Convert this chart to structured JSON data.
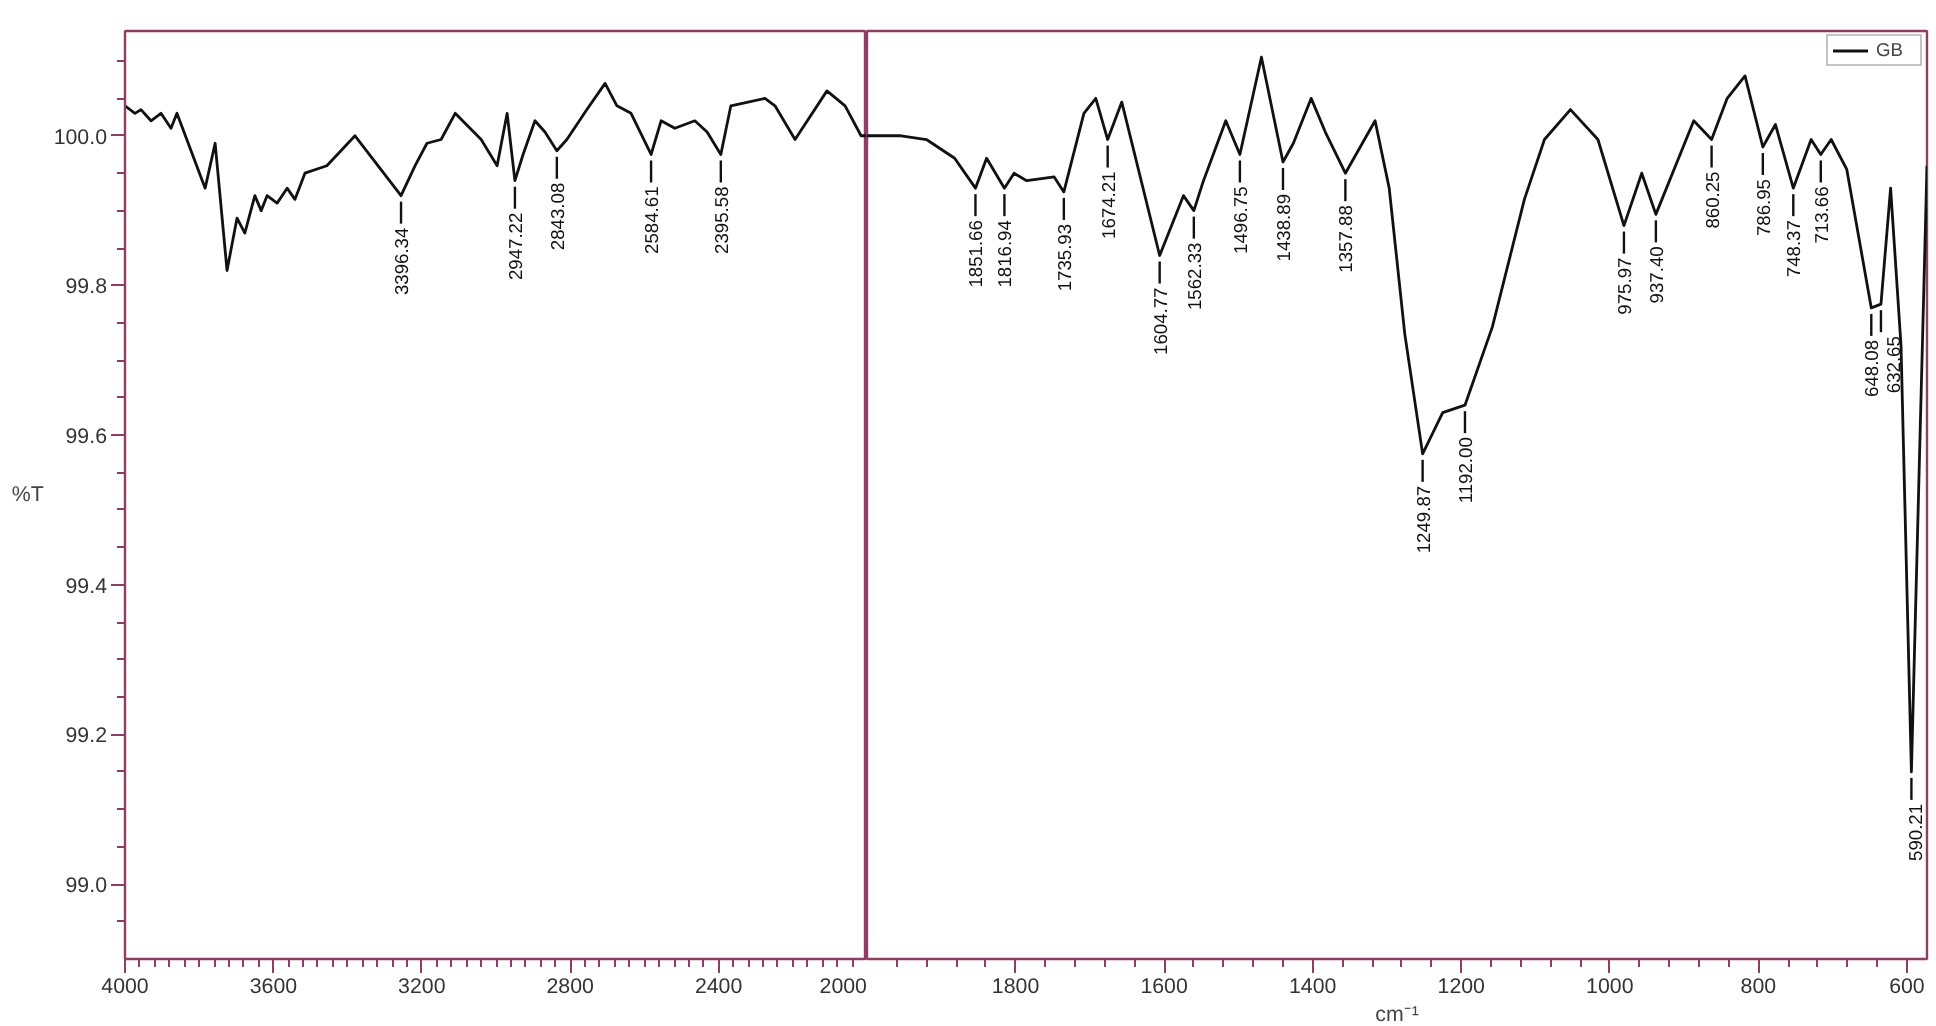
{
  "chart_data": [
    {
      "type": "line",
      "ylabel": "%T",
      "color": "#111111",
      "x": [
        4000,
        3973,
        3957,
        3930,
        3903,
        3876,
        3860,
        3822,
        3784,
        3757,
        3725,
        3698,
        3677,
        3650,
        3633,
        3617,
        3590,
        3563,
        3542,
        3515,
        3456,
        3380,
        3256,
        3218,
        3186,
        3148,
        3110,
        3040,
        2997,
        2970,
        2949,
        2927,
        2895,
        2868,
        2836,
        2809,
        2755,
        2706,
        2674,
        2636,
        2582,
        2555,
        2518,
        2464,
        2431,
        2394,
        2367,
        2275,
        2248,
        2194,
        2108,
        2059,
        2016,
        2000
      ],
      "values": [
        100.04,
        100.03,
        100.035,
        100.02,
        100.03,
        100.01,
        100.03,
        99.98,
        99.93,
        99.99,
        99.82,
        99.89,
        99.87,
        99.92,
        99.9,
        99.92,
        99.91,
        99.93,
        99.915,
        99.95,
        99.96,
        100.0,
        99.92,
        99.96,
        99.99,
        99.995,
        100.03,
        99.995,
        99.96,
        100.03,
        99.94,
        99.975,
        100.02,
        100.005,
        99.98,
        99.995,
        100.035,
        100.07,
        100.04,
        100.03,
        99.975,
        100.02,
        100.01,
        100.02,
        100.005,
        99.975,
        100.04,
        100.05,
        100.04,
        99.995,
        100.06,
        100.04,
        100.0,
        100.0
      ],
      "xlim": [
        4000,
        2000
      ],
      "ylim": [
        98.9,
        100.14
      ],
      "xticks": [
        4000,
        {
          "value": 3960,
          "label": null
        },
        {
          "value": 3920,
          "label": null
        },
        {
          "value": 3880,
          "label": null
        },
        {
          "value": 3840,
          "label": null
        },
        {
          "value": 3800,
          "label": null
        },
        {
          "value": 3760,
          "label": null
        },
        {
          "value": 3720,
          "label": null
        },
        {
          "value": 3680,
          "label": null
        },
        {
          "value": 3640,
          "label": null
        },
        3600,
        {
          "value": 3560,
          "label": null
        },
        {
          "value": 3520,
          "label": null
        },
        {
          "value": 3480,
          "label": null
        },
        {
          "value": 3440,
          "label": null
        },
        {
          "value": 3400,
          "label": null
        },
        {
          "value": 3360,
          "label": null
        },
        {
          "value": 3320,
          "label": null
        },
        {
          "value": 3280,
          "label": null
        },
        {
          "value": 3240,
          "label": null
        },
        3200,
        {
          "value": 3160,
          "label": null
        },
        {
          "value": 3120,
          "label": null
        },
        {
          "value": 3080,
          "label": null
        },
        {
          "value": 3040,
          "label": null
        },
        {
          "value": 3000,
          "label": null
        },
        {
          "value": 2960,
          "label": null
        },
        {
          "value": 2920,
          "label": null
        },
        {
          "value": 2880,
          "label": null
        },
        {
          "value": 2840,
          "label": null
        },
        2800,
        {
          "value": 2760,
          "label": null
        },
        {
          "value": 2720,
          "label": null
        },
        {
          "value": 2680,
          "label": null
        },
        {
          "value": 2640,
          "label": null
        },
        {
          "value": 2600,
          "label": null
        },
        {
          "value": 2560,
          "label": null
        },
        {
          "value": 2520,
          "label": null
        },
        {
          "value": 2480,
          "label": null
        },
        {
          "value": 2440,
          "label": null
        },
        2400,
        {
          "value": 2360,
          "label": null
        },
        {
          "value": 2320,
          "label": null
        },
        {
          "value": 2280,
          "label": null
        },
        {
          "value": 2240,
          "label": null
        },
        {
          "value": 2200,
          "label": null
        },
        {
          "value": 2160,
          "label": null
        },
        {
          "value": 2120,
          "label": null
        },
        {
          "value": 2080,
          "label": null
        },
        {
          "value": 2040,
          "label": null
        },
        2000
      ],
      "yticks": [
        {
          "value": 98.95,
          "label": null
        },
        {
          "value": 99.0,
          "label": "99.0"
        },
        {
          "value": 99.05,
          "label": null
        },
        {
          "value": 99.1,
          "label": null
        },
        {
          "value": 99.15,
          "label": null
        },
        99.2,
        {
          "value": 99.25,
          "label": null
        },
        {
          "value": 99.3,
          "label": null
        },
        {
          "value": 99.35,
          "label": null
        },
        99.4,
        {
          "value": 99.45,
          "label": null
        },
        {
          "value": 99.5,
          "label": null
        },
        {
          "value": 99.55,
          "label": null
        },
        99.6,
        {
          "value": 99.65,
          "label": null
        },
        {
          "value": 99.7,
          "label": null
        },
        {
          "value": 99.75,
          "label": null
        },
        99.8,
        {
          "value": 99.85,
          "label": null
        },
        {
          "value": 99.9,
          "label": null
        },
        {
          "value": 99.95,
          "label": null
        },
        {
          "value": 100.0,
          "label": "100.0"
        },
        {
          "value": 100.05,
          "label": null
        },
        {
          "value": 100.1,
          "label": null
        }
      ],
      "annotations": [
        {
          "text": "3396.34",
          "x": 3256,
          "y": 99.92
        },
        {
          "text": "2947.22",
          "x": 2949,
          "y": 99.94
        },
        {
          "text": "2843.08",
          "x": 2836,
          "y": 99.98
        },
        {
          "text": "2584.61",
          "x": 2582,
          "y": 99.975
        },
        {
          "text": "2395.58",
          "x": 2394,
          "y": 99.975
        }
      ]
    },
    {
      "type": "line",
      "xlabel": "cm⁻¹",
      "tick_labels": "x",
      "legend": "top right",
      "series": [
        {
          "name": "GB",
          "color": "#111111",
          "x": [
            2000,
            1954,
            1920,
            1882,
            1854,
            1839,
            1815,
            1802,
            1785,
            1748,
            1735,
            1708,
            1692,
            1676,
            1657,
            1606,
            1574,
            1560,
            1547,
            1517,
            1498,
            1469,
            1440,
            1426,
            1402,
            1383,
            1356,
            1316,
            1297,
            1276,
            1252,
            1225,
            1195,
            1158,
            1115,
            1088,
            1053,
            1016,
            981,
            957,
            938,
            887,
            863,
            842,
            818,
            794,
            777,
            753,
            729,
            716,
            702,
            681,
            648,
            635,
            622,
            608,
            594,
            573
          ],
          "values": [
            100.0,
            100.0,
            99.995,
            99.97,
            99.93,
            99.97,
            99.93,
            99.95,
            99.94,
            99.945,
            99.925,
            100.03,
            100.05,
            99.995,
            100.045,
            99.84,
            99.92,
            99.9,
            99.94,
            100.02,
            99.975,
            100.105,
            99.965,
            99.99,
            100.05,
            100.005,
            99.95,
            100.02,
            99.93,
            99.735,
            99.575,
            99.63,
            99.64,
            99.745,
            99.915,
            99.995,
            100.035,
            99.995,
            99.88,
            99.95,
            99.895,
            100.02,
            99.995,
            100.05,
            100.08,
            99.985,
            100.015,
            99.93,
            99.995,
            99.975,
            99.995,
            99.955,
            99.77,
            99.775,
            99.93,
            99.72,
            99.15,
            99.96
          ]
        }
      ],
      "xlim": [
        2000,
        573
      ],
      "ylim": [
        98.9,
        100.14
      ],
      "xticks": [
        {
          "value": 1960,
          "label": null
        },
        {
          "value": 1920,
          "label": null
        },
        {
          "value": 1880,
          "label": null
        },
        {
          "value": 1840,
          "label": null
        },
        1800,
        {
          "value": 1760,
          "label": null
        },
        {
          "value": 1720,
          "label": null
        },
        {
          "value": 1680,
          "label": null
        },
        {
          "value": 1640,
          "label": null
        },
        1600,
        {
          "value": 1560,
          "label": null
        },
        {
          "value": 1520,
          "label": null
        },
        {
          "value": 1480,
          "label": null
        },
        {
          "value": 1440,
          "label": null
        },
        1400,
        {
          "value": 1360,
          "label": null
        },
        {
          "value": 1320,
          "label": null
        },
        {
          "value": 1280,
          "label": null
        },
        {
          "value": 1240,
          "label": null
        },
        1200,
        {
          "value": 1160,
          "label": null
        },
        {
          "value": 1120,
          "label": null
        },
        {
          "value": 1080,
          "label": null
        },
        {
          "value": 1040,
          "label": null
        },
        1000,
        {
          "value": 960,
          "label": null
        },
        {
          "value": 920,
          "label": null
        },
        {
          "value": 880,
          "label": null
        },
        {
          "value": 840,
          "label": null
        },
        800,
        {
          "value": 760,
          "label": null
        },
        {
          "value": 720,
          "label": null
        },
        {
          "value": 680,
          "label": null
        },
        {
          "value": 640,
          "label": null
        },
        600
      ],
      "annotations": [
        {
          "text": "1851.66",
          "x": 1854,
          "y": 99.93
        },
        {
          "text": "1816.94",
          "x": 1815,
          "y": 99.93
        },
        {
          "text": "1735.93",
          "x": 1735,
          "y": 99.925
        },
        {
          "text": "1674.21",
          "x": 1676,
          "y": 99.995
        },
        {
          "text": "1604.77",
          "x": 1606,
          "y": 99.84
        },
        {
          "text": "1562.33",
          "x": 1560,
          "y": 99.9
        },
        {
          "text": "1496.75",
          "x": 1498,
          "y": 99.975
        },
        {
          "text": "1438.89",
          "x": 1440,
          "y": 99.965
        },
        {
          "text": "1357.88",
          "x": 1356,
          "y": 99.95
        },
        {
          "text": "1249.87",
          "x": 1252,
          "y": 99.575
        },
        {
          "text": "1192.00",
          "x": 1195,
          "y": 99.64
        },
        {
          "text": "975.97",
          "x": 981,
          "y": 99.88
        },
        {
          "text": "937.40",
          "x": 938,
          "y": 99.895
        },
        {
          "text": "860.25",
          "x": 863,
          "y": 99.995
        },
        {
          "text": "786.95",
          "x": 794,
          "y": 99.985
        },
        {
          "text": "748.37",
          "x": 753,
          "y": 99.93
        },
        {
          "text": "713.66",
          "x": 716,
          "y": 99.975
        },
        {
          "text": "648.08",
          "x": 648,
          "y": 99.77
        },
        {
          "text": "632.65",
          "x": 635,
          "y": 99.775
        },
        {
          "text": "590.21",
          "x": 594,
          "y": 99.15
        }
      ]
    }
  ]
}
